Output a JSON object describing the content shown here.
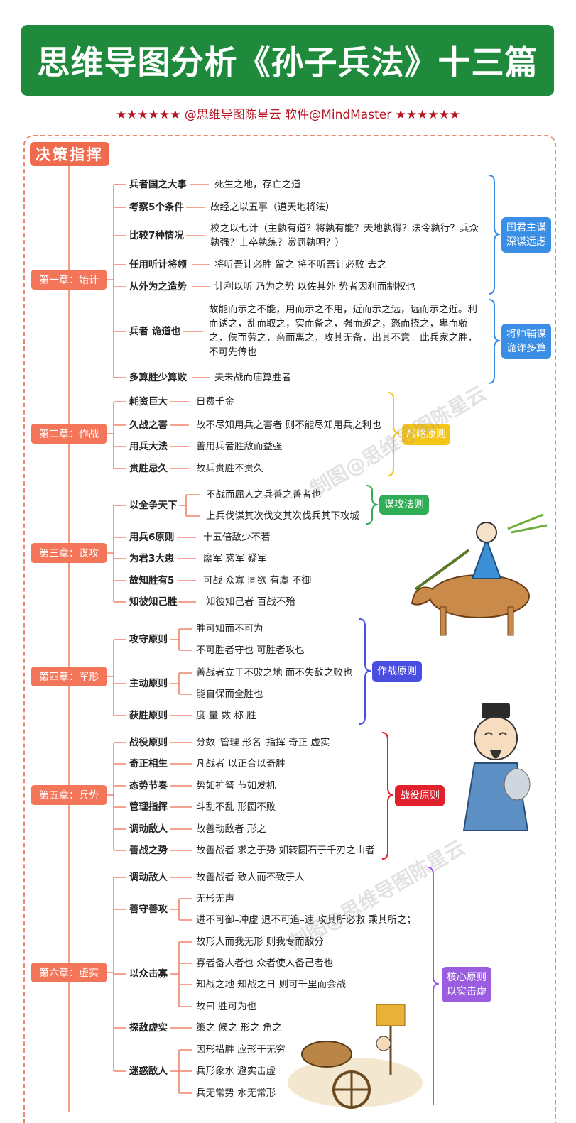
{
  "title": "思维导图分析《孙子兵法》十三篇",
  "credit": "★★★★★★  @思维导图陈星云   软件@MindMaster  ★★★★★★",
  "root": "决策指挥",
  "watermark": "制图@思维导图陈星云",
  "colors": {
    "banner": "#1f8a3c",
    "root": "#f06a4e",
    "chapter": "#f4765a",
    "credit": "#b3121f"
  },
  "chapters": [
    {
      "label": "第一章：始计",
      "items": [
        {
          "key": "兵者国之大事",
          "text": "死生之地，存亡之道"
        },
        {
          "key": "考察5个条件",
          "text": "故经之以五事（道天地将法）"
        },
        {
          "key": "比较7种情况",
          "text": "校之以七计（主孰有道？将孰有能？天地孰得？法令孰行？兵众孰强？士卒孰练？赏罚孰明？）"
        },
        {
          "key": "任用听计将领",
          "text": "将听吾计必胜 留之 将不听吾计必败 去之"
        },
        {
          "key": "从外为之造势",
          "text": "计利以听 乃为之势 以佐其外 势者因利而制权也"
        },
        {
          "key": "兵者 诡道也",
          "text": "故能而示之不能，用而示之不用，近而示之远，远而示之近。利而诱之，乱而取之，实而备之，强而避之，怒而挠之，卑而骄之，佚而劳之，亲而离之，攻其无备，出其不意。此兵家之胜，不可先传也"
        },
        {
          "key": "多算胜少算败",
          "text": "夫未战而庙算胜者"
        }
      ],
      "tags": [
        {
          "lines": [
            "国君主谋",
            "深谋远虑"
          ],
          "color": "#3a8ee6"
        },
        {
          "lines": [
            "将帅辅谋",
            "诡诈多算"
          ],
          "color": "#3a8ee6"
        }
      ]
    },
    {
      "label": "第二章：作战",
      "items": [
        {
          "key": "耗资巨大",
          "text": "日费千金"
        },
        {
          "key": "久战之害",
          "text": "故不尽知用兵之害者 则不能尽知用兵之利也"
        },
        {
          "key": "用兵大法",
          "text": "善用兵者胜敌而益强"
        },
        {
          "key": "贵胜忌久",
          "text": "故兵贵胜不贵久"
        }
      ],
      "tags": [
        {
          "lines": [
            "战略原则"
          ],
          "color": "#f5c518"
        }
      ]
    },
    {
      "label": "第三章：谋攻",
      "items": [
        {
          "key": "以全争天下",
          "subs": [
            "不战而屈人之兵善之善者也",
            "上兵伐谋其次伐交其次伐兵其下攻城"
          ]
        },
        {
          "key": "用兵6原则",
          "text": "十五倍敌少不若"
        },
        {
          "key": "为君3大患",
          "text": "縻军 惑军 疑军"
        },
        {
          "key": "故知胜有5",
          "text": "可战 众寡 同欲 有虞 不御"
        },
        {
          "key": "知彼知己胜",
          "text": "知彼知己者 百战不殆"
        }
      ],
      "tags": [
        {
          "lines": [
            "谋攻法则"
          ],
          "color": "#2fae55"
        }
      ]
    },
    {
      "label": "第四章：军形",
      "items": [
        {
          "key": "攻守原则",
          "subs": [
            "胜可知而不可为",
            "不可胜者守也 可胜者攻也"
          ]
        },
        {
          "key": "主动原则",
          "subs": [
            "善战者立于不败之地 而不失敌之败也",
            "能自保而全胜也"
          ]
        },
        {
          "key": "获胜原则",
          "text": "度 量 数 称 胜"
        }
      ],
      "tags": [
        {
          "lines": [
            "作战原则"
          ],
          "color": "#4a4ee0"
        }
      ]
    },
    {
      "label": "第五章：兵势",
      "items": [
        {
          "key": "战役原则",
          "text": "分数–管理 形名–指挥 奇正 虚实"
        },
        {
          "key": "奇正相生",
          "text": "凡战者 以正合以奇胜"
        },
        {
          "key": "态势节奏",
          "text": "势如扩弩 节如发机"
        },
        {
          "key": "管理指挥",
          "text": "斗乱不乱 形圆不败"
        },
        {
          "key": "调动敌人",
          "text": "故善动敌者 形之"
        },
        {
          "key": "善战之势",
          "text": "故善战者 求之于势 如转圆石于千刃之山者"
        }
      ],
      "tags": [
        {
          "lines": [
            "战役原则"
          ],
          "color": "#e0202a"
        }
      ]
    },
    {
      "label": "第六章：虚实",
      "items": [
        {
          "key": "调动敌人",
          "text": "故善战者 致人而不致于人"
        },
        {
          "key": "善守善攻",
          "subs": [
            "无形无声",
            "进不可御–冲虚 退不可追–速 攻其所必救 乘其所之；"
          ]
        },
        {
          "key": "以众击寡",
          "subs": [
            "故形人而我无形 则我专而敌分",
            "寡者备人者也 众者使人备己者也",
            "知战之地 知战之日 则可千里而会战",
            "故曰 胜可为也"
          ]
        },
        {
          "key": "探敌虚实",
          "text": "策之 候之 形之 角之"
        },
        {
          "key": "迷惑敌人",
          "subs": [
            "因形措胜 应形于无穷",
            "兵形象水 避实击虚",
            "兵无常势 水无常形"
          ]
        }
      ],
      "tags": [
        {
          "lines": [
            "核心原则",
            "以实击虚"
          ],
          "color": "#9b5de0"
        }
      ]
    }
  ]
}
